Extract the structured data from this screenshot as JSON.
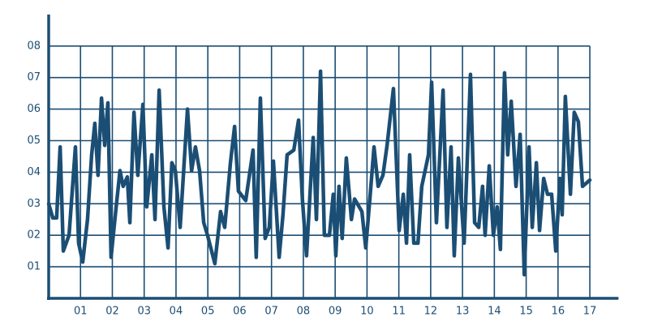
{
  "chart_data": {
    "type": "line",
    "x": [
      0,
      0.13,
      0.25,
      0.36,
      0.46,
      0.64,
      0.84,
      0.94,
      1.07,
      1.22,
      1.35,
      1.45,
      1.55,
      1.66,
      1.76,
      1.86,
      1.96,
      2.12,
      2.24,
      2.34,
      2.47,
      2.55,
      2.68,
      2.8,
      2.96,
      3.08,
      3.24,
      3.34,
      3.47,
      3.62,
      3.75,
      3.87,
      3.98,
      4.13,
      4.36,
      4.49,
      4.61,
      4.74,
      4.87,
      4.99,
      5.22,
      5.4,
      5.53,
      5.71,
      5.84,
      5.96,
      6.19,
      6.42,
      6.52,
      6.65,
      6.8,
      6.93,
      7.06,
      7.24,
      7.36,
      7.49,
      7.7,
      7.85,
      7.97,
      8.1,
      8.31,
      8.41,
      8.54,
      8.66,
      8.82,
      8.94,
      9.02,
      9.12,
      9.22,
      9.35,
      9.51,
      9.61,
      9.84,
      9.96,
      10.09,
      10.22,
      10.35,
      10.5,
      10.63,
      10.83,
      11.01,
      11.14,
      11.24,
      11.34,
      11.47,
      11.6,
      11.72,
      11.93,
      12.03,
      12.18,
      12.39,
      12.51,
      12.64,
      12.74,
      12.87,
      13.05,
      13.18,
      13.25,
      13.38,
      13.51,
      13.63,
      13.71,
      13.84,
      13.97,
      14.09,
      14.19,
      14.32,
      14.42,
      14.53,
      14.68,
      14.81,
      14.94,
      15.09,
      15.19,
      15.32,
      15.42,
      15.55,
      15.67,
      15.8,
      15.93,
      16.06,
      16.13,
      16.23,
      16.39,
      16.51,
      16.64,
      16.77,
      17
    ],
    "series": [
      {
        "color": "#1b4e74",
        "values": [
          3.0,
          2.55,
          2.55,
          4.8,
          1.5,
          2.0,
          4.8,
          1.75,
          1.15,
          2.5,
          4.55,
          5.55,
          3.9,
          6.35,
          4.85,
          6.2,
          1.3,
          2.9,
          4.05,
          3.55,
          3.85,
          2.4,
          5.9,
          3.9,
          6.15,
          2.9,
          4.55,
          2.5,
          6.6,
          2.9,
          1.6,
          4.3,
          4.05,
          2.25,
          6.0,
          4.05,
          4.8,
          4.05,
          2.4,
          2.0,
          1.1,
          2.75,
          2.25,
          4.3,
          5.45,
          3.4,
          3.1,
          4.7,
          1.3,
          6.35,
          1.9,
          2.25,
          4.35,
          1.3,
          2.65,
          4.55,
          4.7,
          5.65,
          3.15,
          1.35,
          5.1,
          2.5,
          7.2,
          2.0,
          2.0,
          3.3,
          1.35,
          3.55,
          1.9,
          4.45,
          2.5,
          3.15,
          2.75,
          1.6,
          3.15,
          4.8,
          3.55,
          3.9,
          4.85,
          6.65,
          2.15,
          3.3,
          1.75,
          4.55,
          1.75,
          1.75,
          3.55,
          4.55,
          6.85,
          2.4,
          6.6,
          2.25,
          4.8,
          1.35,
          4.45,
          1.75,
          5.2,
          7.1,
          2.4,
          2.25,
          3.55,
          2.0,
          4.2,
          2.0,
          2.9,
          1.55,
          7.15,
          4.55,
          6.25,
          3.55,
          5.2,
          0.75,
          4.8,
          2.25,
          4.3,
          2.15,
          3.8,
          3.3,
          3.3,
          1.5,
          3.8,
          2.65,
          6.4,
          3.3,
          5.9,
          5.6,
          3.55,
          3.75
        ]
      }
    ],
    "xlim": [
      0,
      17.9
    ],
    "ylim": [
      0,
      9
    ],
    "xticks": [
      {
        "value": 1,
        "label": "01"
      },
      {
        "value": 2,
        "label": "02"
      },
      {
        "value": 3,
        "label": "03"
      },
      {
        "value": 4,
        "label": "04"
      },
      {
        "value": 5,
        "label": "05"
      },
      {
        "value": 6,
        "label": "06"
      },
      {
        "value": 7,
        "label": "07"
      },
      {
        "value": 8,
        "label": "08"
      },
      {
        "value": 9,
        "label": "09"
      },
      {
        "value": 10,
        "label": "10"
      },
      {
        "value": 11,
        "label": "11"
      },
      {
        "value": 12,
        "label": "12"
      },
      {
        "value": 13,
        "label": "13"
      },
      {
        "value": 14,
        "label": "14"
      },
      {
        "value": 15,
        "label": "15"
      },
      {
        "value": 16,
        "label": "16"
      },
      {
        "value": 17,
        "label": "17"
      }
    ],
    "yticks": [
      {
        "value": 1,
        "label": "01"
      },
      {
        "value": 2,
        "label": "02"
      },
      {
        "value": 3,
        "label": "03"
      },
      {
        "value": 4,
        "label": "04"
      },
      {
        "value": 5,
        "label": "05"
      },
      {
        "value": 6,
        "label": "06"
      },
      {
        "value": 7,
        "label": "07"
      },
      {
        "value": 8,
        "label": "08"
      }
    ],
    "grid": true
  }
}
